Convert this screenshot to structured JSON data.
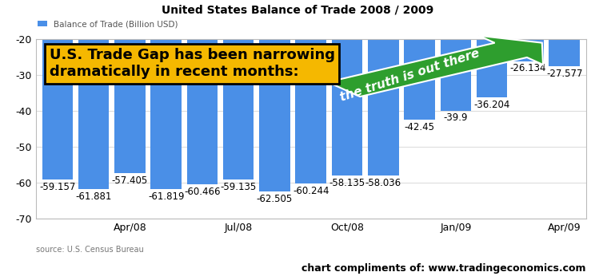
{
  "chart_data": {
    "type": "bar",
    "title": "United States Balance of Trade 2008 / 2009",
    "categories": [
      null,
      null,
      "Apr/08",
      null,
      null,
      "Jul/08",
      null,
      null,
      "Oct/08",
      null,
      null,
      "Jan/09",
      null,
      null,
      "Apr/09"
    ],
    "series": [
      {
        "name": "Balance of Trade (Billion USD)",
        "color": "#4a8fe7",
        "values": [
          -59.157,
          -61.881,
          -57.405,
          -61.819,
          -60.466,
          -59.135,
          -62.505,
          -60.244,
          -58.135,
          -58.036,
          -42.45,
          -39.9,
          -36.204,
          -26.134,
          -27.577
        ]
      }
    ],
    "ylim": [
      -70,
      -20
    ],
    "yticks": [
      -70,
      -60,
      -50,
      -40,
      -30,
      -20
    ],
    "grid": true,
    "legend": "upper left",
    "data_labels": true,
    "annotations": [
      "U.S. Trade Gap has been narrowing\ndramatically in recent months:",
      "the truth is out there"
    ],
    "source": "source: U.S. Census Bureau",
    "credit": "chart compliments of: www.tradingeconomics.com"
  }
}
